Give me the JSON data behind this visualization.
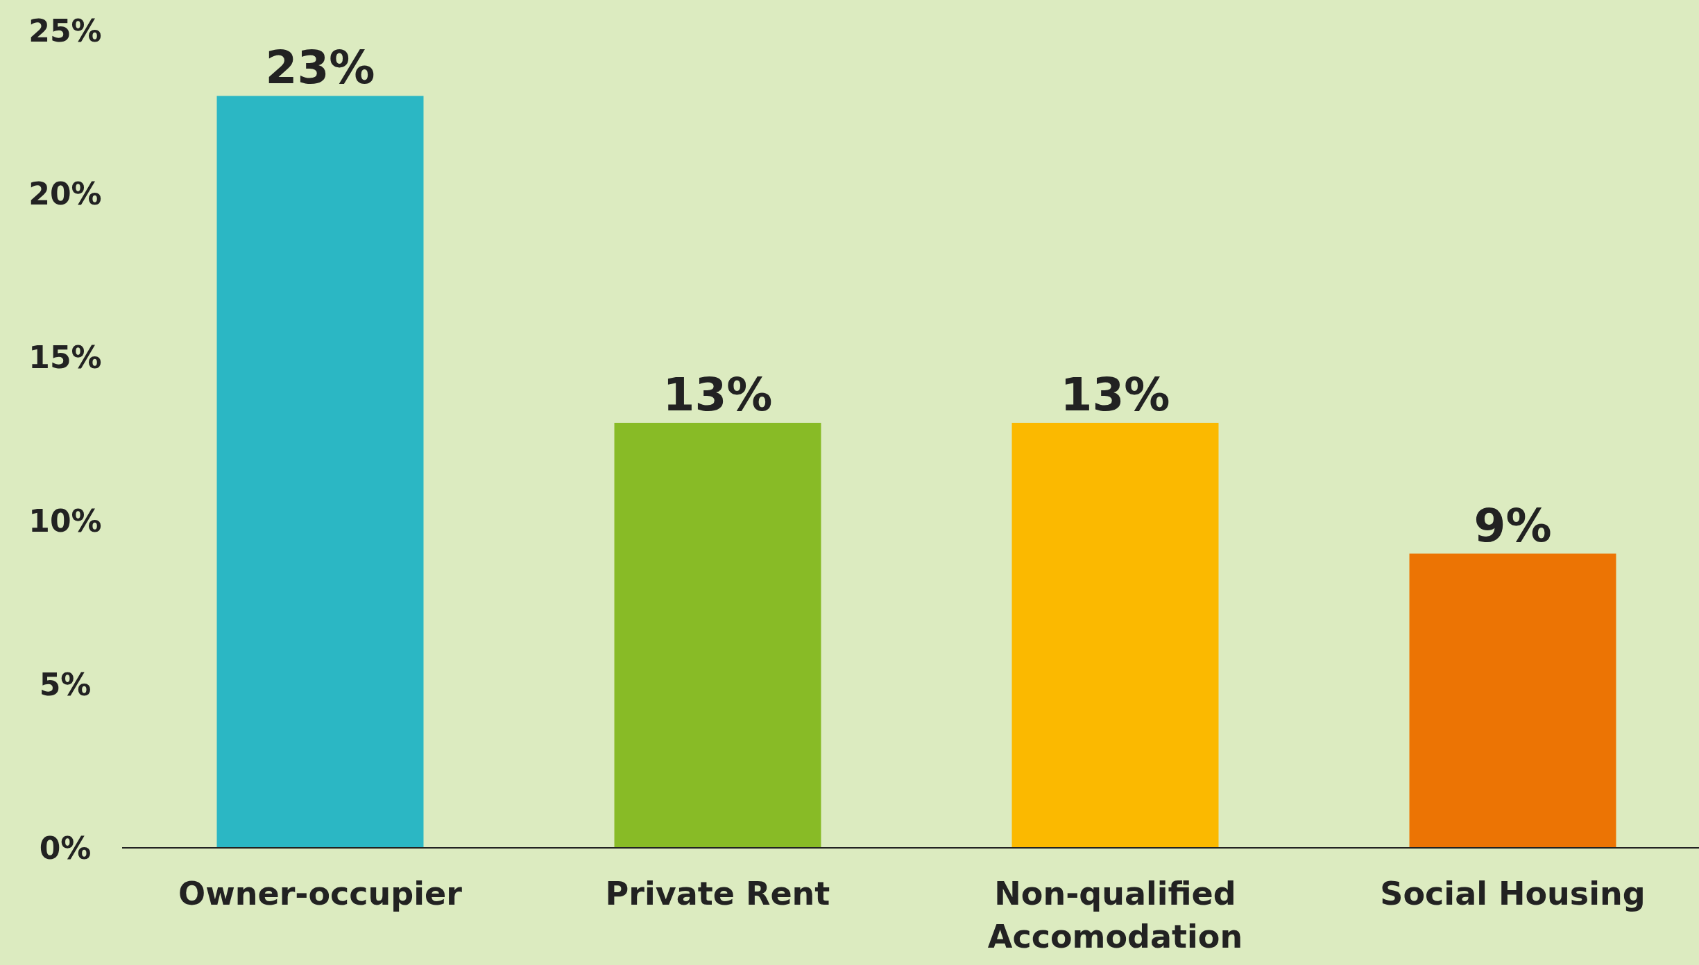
{
  "chart_data": {
    "type": "bar",
    "categories": [
      "Owner-occupier",
      "Private Rent",
      "Non-qualified Accomodation",
      "Social Housing"
    ],
    "values": [
      23,
      13,
      13,
      9
    ],
    "colors": [
      "#2bb7c4",
      "#88bb26",
      "#fbb900",
      "#ec7404"
    ],
    "ylim": [
      0,
      25
    ],
    "yticks": [
      {
        "value": 0,
        "label": "0%"
      },
      {
        "value": 5,
        "label": "5%"
      },
      {
        "value": 10,
        "label": "10%"
      },
      {
        "value": 15,
        "label": "15%"
      },
      {
        "value": 20,
        "label": "20%"
      },
      {
        "value": 25,
        "label": "25%"
      }
    ],
    "value_labels": [
      "23%",
      "13%",
      "13%",
      "9%"
    ],
    "grid": false
  }
}
